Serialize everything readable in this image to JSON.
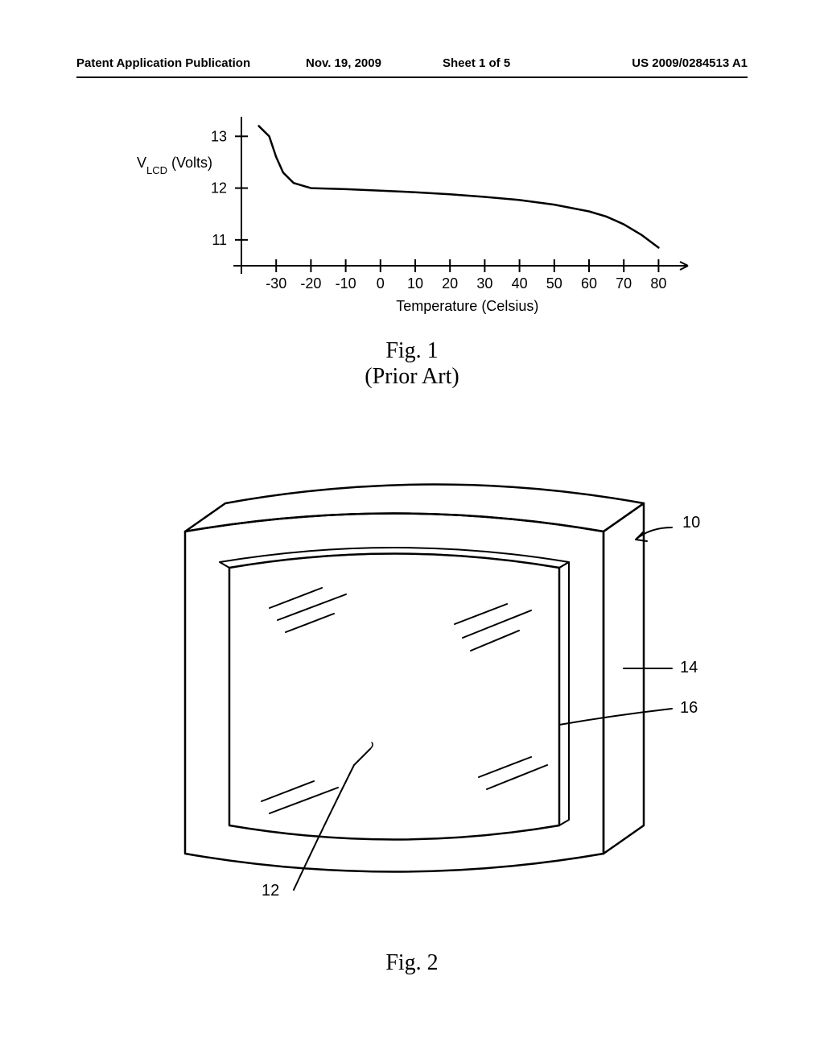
{
  "header": {
    "left": "Patent Application Publication",
    "date": "Nov. 19, 2009",
    "sheet": "Sheet 1 of 5",
    "pubno": "US 2009/0284513 A1"
  },
  "fig1": {
    "caption_line1": "Fig. 1",
    "caption_line2": "(Prior Art)",
    "ylabel_prefix": "V",
    "ylabel_sub": "LCD",
    "ylabel_suffix": " (Volts)",
    "xlabel": "Temperature (Celsius)",
    "yticks": [
      11,
      12,
      13
    ],
    "xticks": [
      -30,
      -20,
      -10,
      0,
      10,
      20,
      30,
      40,
      50,
      60,
      70,
      80
    ],
    "curve": [
      {
        "temp": -35,
        "v": 13.2
      },
      {
        "temp": -32,
        "v": 13.0
      },
      {
        "temp": -30,
        "v": 12.6
      },
      {
        "temp": -28,
        "v": 12.3
      },
      {
        "temp": -25,
        "v": 12.1
      },
      {
        "temp": -20,
        "v": 12.0
      },
      {
        "temp": -10,
        "v": 11.98
      },
      {
        "temp": 0,
        "v": 11.95
      },
      {
        "temp": 10,
        "v": 11.92
      },
      {
        "temp": 20,
        "v": 11.88
      },
      {
        "temp": 30,
        "v": 11.83
      },
      {
        "temp": 40,
        "v": 11.77
      },
      {
        "temp": 50,
        "v": 11.68
      },
      {
        "temp": 60,
        "v": 11.55
      },
      {
        "temp": 65,
        "v": 11.45
      },
      {
        "temp": 70,
        "v": 11.3
      },
      {
        "temp": 75,
        "v": 11.1
      },
      {
        "temp": 80,
        "v": 10.85
      }
    ],
    "axis": {
      "xlim": [
        -40,
        85
      ],
      "ylim": [
        10.5,
        13.3
      ],
      "font_size": 18,
      "line_width": 2,
      "color": "#000000"
    }
  },
  "fig2": {
    "caption": "Fig. 2",
    "refs": {
      "r10": "10",
      "r12": "12",
      "r14": "14",
      "r16": "16"
    }
  }
}
